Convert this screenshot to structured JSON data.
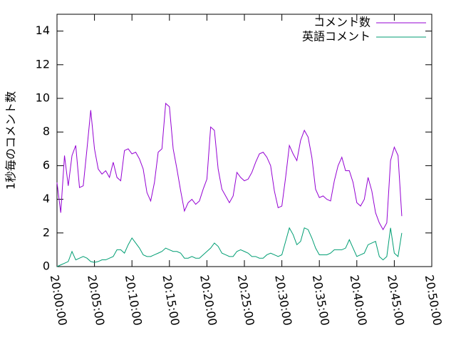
{
  "chart_data": {
    "type": "line",
    "ylabel": "1秒毎のコメント数",
    "x": [
      "20:00:00",
      "20:00:30",
      "20:01:00",
      "20:01:30",
      "20:02:00",
      "20:02:30",
      "20:03:00",
      "20:03:30",
      "20:04:00",
      "20:04:30",
      "20:05:00",
      "20:05:30",
      "20:06:00",
      "20:06:30",
      "20:07:00",
      "20:07:30",
      "20:08:00",
      "20:08:30",
      "20:09:00",
      "20:09:30",
      "20:10:00",
      "20:10:30",
      "20:11:00",
      "20:11:30",
      "20:12:00",
      "20:12:30",
      "20:13:00",
      "20:13:30",
      "20:14:00",
      "20:14:30",
      "20:15:00",
      "20:15:30",
      "20:16:00",
      "20:16:30",
      "20:17:00",
      "20:17:30",
      "20:18:00",
      "20:18:30",
      "20:19:00",
      "20:19:30",
      "20:20:00",
      "20:20:30",
      "20:21:00",
      "20:21:30",
      "20:22:00",
      "20:22:30",
      "20:23:00",
      "20:23:30",
      "20:24:00",
      "20:24:30",
      "20:25:00",
      "20:25:30",
      "20:26:00",
      "20:26:30",
      "20:27:00",
      "20:27:30",
      "20:28:00",
      "20:28:30",
      "20:29:00",
      "20:29:30",
      "20:30:00",
      "20:30:30",
      "20:31:00",
      "20:31:30",
      "20:32:00",
      "20:32:30",
      "20:33:00",
      "20:33:30",
      "20:34:00",
      "20:34:30",
      "20:35:00",
      "20:35:30",
      "20:36:00",
      "20:36:30",
      "20:37:00",
      "20:37:30",
      "20:38:00",
      "20:38:30",
      "20:39:00",
      "20:39:30",
      "20:40:00",
      "20:40:30",
      "20:41:00",
      "20:41:30",
      "20:42:00",
      "20:42:30",
      "20:43:00",
      "20:43:30",
      "20:44:00",
      "20:44:30",
      "20:45:00",
      "20:45:30",
      "20:46:00"
    ],
    "series": [
      {
        "name": "コメント数",
        "color": "#9400d3",
        "values": [
          5.0,
          3.2,
          6.6,
          4.8,
          6.6,
          7.2,
          4.7,
          4.8,
          7.0,
          9.3,
          7.0,
          5.8,
          5.5,
          5.7,
          5.3,
          6.2,
          5.3,
          5.1,
          6.9,
          7.0,
          6.7,
          6.8,
          6.4,
          5.8,
          4.4,
          3.9,
          5.0,
          6.8,
          7.0,
          9.7,
          9.5,
          7.0,
          5.8,
          4.5,
          3.3,
          3.8,
          4.0,
          3.7,
          3.9,
          4.6,
          5.2,
          8.3,
          8.1,
          5.8,
          4.6,
          4.2,
          3.8,
          4.2,
          5.6,
          5.3,
          5.1,
          5.2,
          5.6,
          6.2,
          6.7,
          6.8,
          6.5,
          6.0,
          4.5,
          3.5,
          3.6,
          5.3,
          7.2,
          6.7,
          6.3,
          7.5,
          8.1,
          7.7,
          6.5,
          4.6,
          4.1,
          4.2,
          4.0,
          3.9,
          5.1,
          6.0,
          6.5,
          5.7,
          5.7,
          5.0,
          3.8,
          3.6,
          4.0,
          5.3,
          4.5,
          3.2,
          2.6,
          2.2,
          2.6,
          6.3,
          7.1,
          6.6,
          3.0
        ]
      },
      {
        "name": "英語コメント",
        "color": "#009e73",
        "values": [
          0.0,
          0.1,
          0.2,
          0.3,
          0.9,
          0.4,
          0.5,
          0.6,
          0.5,
          0.3,
          0.25,
          0.3,
          0.4,
          0.4,
          0.5,
          0.6,
          1.0,
          1.0,
          0.8,
          1.3,
          1.7,
          1.4,
          1.1,
          0.7,
          0.6,
          0.6,
          0.7,
          0.8,
          0.9,
          1.1,
          1.0,
          0.9,
          0.9,
          0.8,
          0.5,
          0.5,
          0.6,
          0.5,
          0.5,
          0.7,
          0.9,
          1.1,
          1.4,
          1.2,
          0.8,
          0.7,
          0.6,
          0.6,
          0.9,
          1.0,
          0.9,
          0.8,
          0.6,
          0.6,
          0.5,
          0.5,
          0.7,
          0.8,
          0.7,
          0.6,
          0.7,
          1.5,
          2.3,
          1.9,
          1.3,
          1.5,
          2.3,
          2.2,
          1.7,
          1.1,
          0.7,
          0.7,
          0.7,
          0.8,
          1.0,
          1.0,
          1.0,
          1.1,
          1.6,
          1.1,
          0.6,
          0.7,
          0.8,
          1.3,
          1.4,
          1.5,
          0.6,
          0.4,
          0.6,
          2.3,
          0.8,
          0.6,
          2.0
        ]
      }
    ],
    "xlim": [
      "20:00:00",
      "20:50:00"
    ],
    "xticks": [
      "20:00:00",
      "20:05:00",
      "20:10:00",
      "20:15:00",
      "20:20:00",
      "20:25:00",
      "20:30:00",
      "20:35:00",
      "20:40:00",
      "20:45:00",
      "20:50:00"
    ],
    "ylim": [
      0,
      15
    ],
    "yticks": [
      0,
      2,
      4,
      6,
      8,
      10,
      12,
      14
    ],
    "legend": "top-right"
  }
}
